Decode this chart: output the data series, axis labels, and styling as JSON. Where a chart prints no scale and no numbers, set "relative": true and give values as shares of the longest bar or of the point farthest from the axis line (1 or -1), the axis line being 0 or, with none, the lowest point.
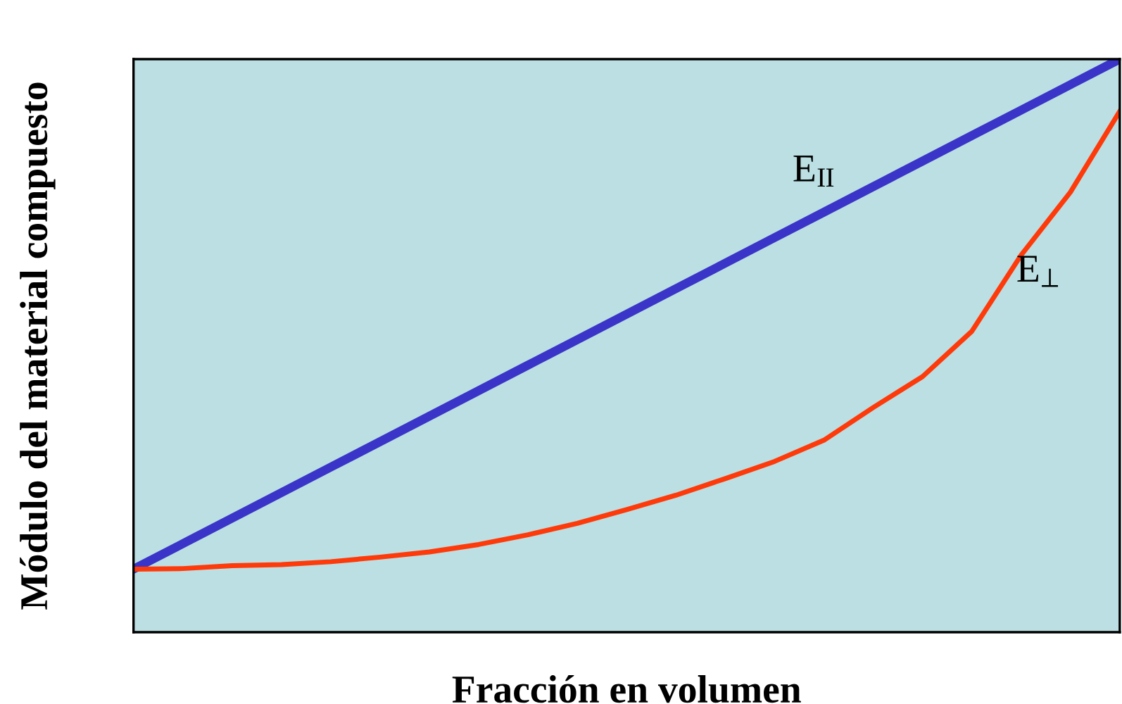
{
  "chart_data": {
    "type": "line",
    "relative": true,
    "xlabel": "Fracción en volumen",
    "ylabel": "Módulo del material compuesto",
    "categories": [
      null,
      null,
      null,
      null,
      null,
      null,
      null,
      null,
      null,
      null,
      null,
      null,
      null,
      null,
      null,
      null,
      null,
      null,
      null,
      null,
      null
    ],
    "series": [
      {
        "name": "E$_{II}$",
        "color": "#3a35c8",
        "values": [
          0.11,
          0.1545,
          0.199,
          0.2435,
          0.288,
          0.3325,
          0.377,
          0.4215,
          0.466,
          0.5105,
          0.555,
          0.5995,
          0.644,
          0.6885,
          0.733,
          0.7775,
          0.822,
          0.8665,
          0.911,
          0.9555,
          1.0
        ]
      },
      {
        "name": "E$_{⊥}$",
        "color": "#ff3a0a",
        "values": [
          0.11,
          0.111,
          0.116,
          0.118,
          0.123,
          0.131,
          0.14,
          0.153,
          0.17,
          0.19,
          0.214,
          0.239,
          0.268,
          0.298,
          0.335,
          0.392,
          0.446,
          0.525,
          0.658,
          0.768,
          0.909
        ]
      }
    ],
    "grid": false,
    "legend": false,
    "tick_labels": false,
    "marker": "none",
    "line_style": "solid"
  }
}
